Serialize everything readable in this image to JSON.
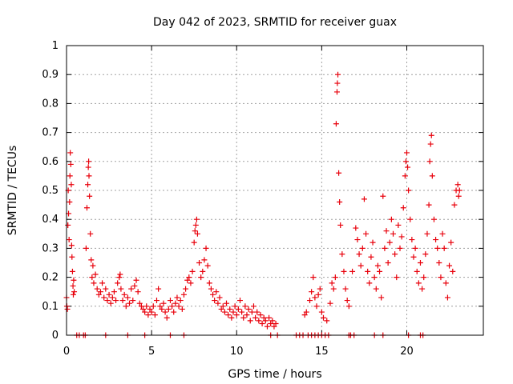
{
  "chart_data": {
    "type": "scatter",
    "title": "Day 042 of 2023, SRMTID for receiver guax",
    "xlabel": "GPS time / hours",
    "ylabel": "SRMTID / TECUs",
    "xlim": [
      0,
      24.5
    ],
    "ylim": [
      0,
      1
    ],
    "grid": true,
    "marker": "+",
    "marker_color": "#e8000b",
    "x_ticks": [
      {
        "value": 0,
        "label": "0"
      },
      {
        "value": 5,
        "label": "5"
      },
      {
        "value": 10,
        "label": "10"
      },
      {
        "value": 15,
        "label": "15"
      },
      {
        "value": 20,
        "label": "20"
      }
    ],
    "y_ticks": [
      {
        "value": 0,
        "label": "0"
      },
      {
        "value": 0.1,
        "label": "0.1"
      },
      {
        "value": 0.2,
        "label": "0.2"
      },
      {
        "value": 0.3,
        "label": "0.3"
      },
      {
        "value": 0.4,
        "label": "0.4"
      },
      {
        "value": 0.5,
        "label": "0.5"
      },
      {
        "value": 0.6,
        "label": "0.6"
      },
      {
        "value": 0.7,
        "label": "0.7"
      },
      {
        "value": 0.8,
        "label": "0.8"
      },
      {
        "value": 0.9,
        "label": "0.9"
      },
      {
        "value": 1,
        "label": "1"
      }
    ],
    "series": [
      {
        "name": "SRMTID",
        "points": [
          [
            0.0,
            0.13
          ],
          [
            0.02,
            0.1
          ],
          [
            0.05,
            0.09
          ],
          [
            0.08,
            0.38
          ],
          [
            0.1,
            0.5
          ],
          [
            0.12,
            0.42
          ],
          [
            0.15,
            0.33
          ],
          [
            0.18,
            0.46
          ],
          [
            0.2,
            0.55
          ],
          [
            0.22,
            0.63
          ],
          [
            0.25,
            0.59
          ],
          [
            0.28,
            0.52
          ],
          [
            0.3,
            0.31
          ],
          [
            0.32,
            0.27
          ],
          [
            0.35,
            0.22
          ],
          [
            0.38,
            0.17
          ],
          [
            0.4,
            0.14
          ],
          [
            0.42,
            0.19
          ],
          [
            0.45,
            0.15
          ],
          [
            1.15,
            0.3
          ],
          [
            1.2,
            0.44
          ],
          [
            1.25,
            0.52
          ],
          [
            1.28,
            0.58
          ],
          [
            1.3,
            0.6
          ],
          [
            1.32,
            0.55
          ],
          [
            1.35,
            0.48
          ],
          [
            1.4,
            0.35
          ],
          [
            1.45,
            0.26
          ],
          [
            1.5,
            0.2
          ],
          [
            1.55,
            0.24
          ],
          [
            1.6,
            0.18
          ],
          [
            1.7,
            0.21
          ],
          [
            1.8,
            0.16
          ],
          [
            1.9,
            0.14
          ],
          [
            2.0,
            0.15
          ],
          [
            2.1,
            0.18
          ],
          [
            2.2,
            0.13
          ],
          [
            2.3,
            0.16
          ],
          [
            2.4,
            0.12
          ],
          [
            2.5,
            0.14
          ],
          [
            2.6,
            0.11
          ],
          [
            2.7,
            0.13
          ],
          [
            2.8,
            0.15
          ],
          [
            2.9,
            0.12
          ],
          [
            3.0,
            0.18
          ],
          [
            3.1,
            0.2
          ],
          [
            3.15,
            0.21
          ],
          [
            3.2,
            0.16
          ],
          [
            3.3,
            0.12
          ],
          [
            3.4,
            0.14
          ],
          [
            3.5,
            0.1
          ],
          [
            3.6,
            0.13
          ],
          [
            3.7,
            0.11
          ],
          [
            3.8,
            0.16
          ],
          [
            3.9,
            0.12
          ],
          [
            4.0,
            0.17
          ],
          [
            4.1,
            0.19
          ],
          [
            4.2,
            0.15
          ],
          [
            4.3,
            0.11
          ],
          [
            4.4,
            0.1
          ],
          [
            4.5,
            0.09
          ],
          [
            4.6,
            0.08
          ],
          [
            4.7,
            0.1
          ],
          [
            4.8,
            0.07
          ],
          [
            4.9,
            0.09
          ],
          [
            5.0,
            0.08
          ],
          [
            5.1,
            0.1
          ],
          [
            5.2,
            0.07
          ],
          [
            5.3,
            0.12
          ],
          [
            5.4,
            0.16
          ],
          [
            5.5,
            0.1
          ],
          [
            5.6,
            0.09
          ],
          [
            5.7,
            0.11
          ],
          [
            5.8,
            0.08
          ],
          [
            5.9,
            0.06
          ],
          [
            6.0,
            0.09
          ],
          [
            6.1,
            0.12
          ],
          [
            6.2,
            0.1
          ],
          [
            6.3,
            0.08
          ],
          [
            6.4,
            0.11
          ],
          [
            6.5,
            0.13
          ],
          [
            6.6,
            0.1
          ],
          [
            6.7,
            0.12
          ],
          [
            6.8,
            0.09
          ],
          [
            6.9,
            0.14
          ],
          [
            7.0,
            0.16
          ],
          [
            7.1,
            0.19
          ],
          [
            7.2,
            0.2
          ],
          [
            7.3,
            0.18
          ],
          [
            7.4,
            0.22
          ],
          [
            7.5,
            0.32
          ],
          [
            7.55,
            0.36
          ],
          [
            7.6,
            0.38
          ],
          [
            7.65,
            0.4
          ],
          [
            7.7,
            0.35
          ],
          [
            7.8,
            0.25
          ],
          [
            7.9,
            0.2
          ],
          [
            8.0,
            0.22
          ],
          [
            8.1,
            0.26
          ],
          [
            8.2,
            0.3
          ],
          [
            8.3,
            0.24
          ],
          [
            8.4,
            0.18
          ],
          [
            8.5,
            0.16
          ],
          [
            8.6,
            0.14
          ],
          [
            8.7,
            0.12
          ],
          [
            8.8,
            0.15
          ],
          [
            8.9,
            0.11
          ],
          [
            9.0,
            0.13
          ],
          [
            9.1,
            0.09
          ],
          [
            9.2,
            0.1
          ],
          [
            9.3,
            0.08
          ],
          [
            9.4,
            0.11
          ],
          [
            9.5,
            0.07
          ],
          [
            9.6,
            0.09
          ],
          [
            9.7,
            0.06
          ],
          [
            9.8,
            0.08
          ],
          [
            9.9,
            0.1
          ],
          [
            10.0,
            0.07
          ],
          [
            10.1,
            0.09
          ],
          [
            10.2,
            0.12
          ],
          [
            10.3,
            0.08
          ],
          [
            10.4,
            0.06
          ],
          [
            10.5,
            0.1
          ],
          [
            10.6,
            0.07
          ],
          [
            10.7,
            0.09
          ],
          [
            10.8,
            0.05
          ],
          [
            10.9,
            0.08
          ],
          [
            11.0,
            0.1
          ],
          [
            11.1,
            0.06
          ],
          [
            11.2,
            0.08
          ],
          [
            11.3,
            0.05
          ],
          [
            11.4,
            0.07
          ],
          [
            11.5,
            0.04
          ],
          [
            11.6,
            0.06
          ],
          [
            11.7,
            0.05
          ],
          [
            11.8,
            0.03
          ],
          [
            11.9,
            0.06
          ],
          [
            12.0,
            0.04
          ],
          [
            12.1,
            0.05
          ],
          [
            12.2,
            0.03
          ],
          [
            12.3,
            0.04
          ],
          [
            14.0,
            0.07
          ],
          [
            14.1,
            0.08
          ],
          [
            14.3,
            0.12
          ],
          [
            14.4,
            0.15
          ],
          [
            14.5,
            0.2
          ],
          [
            14.6,
            0.13
          ],
          [
            14.7,
            0.1
          ],
          [
            14.8,
            0.14
          ],
          [
            14.9,
            0.16
          ],
          [
            15.0,
            0.08
          ],
          [
            15.1,
            0.06
          ],
          [
            15.3,
            0.05
          ],
          [
            15.5,
            0.11
          ],
          [
            15.6,
            0.18
          ],
          [
            15.7,
            0.16
          ],
          [
            15.8,
            0.2
          ],
          [
            15.85,
            0.73
          ],
          [
            15.9,
            0.84
          ],
          [
            15.92,
            0.87
          ],
          [
            15.95,
            0.9
          ],
          [
            16.0,
            0.56
          ],
          [
            16.05,
            0.46
          ],
          [
            16.1,
            0.38
          ],
          [
            16.2,
            0.28
          ],
          [
            16.3,
            0.22
          ],
          [
            16.4,
            0.16
          ],
          [
            16.5,
            0.12
          ],
          [
            16.6,
            0.1
          ],
          [
            16.8,
            0.22
          ],
          [
            17.0,
            0.37
          ],
          [
            17.1,
            0.33
          ],
          [
            17.2,
            0.28
          ],
          [
            17.3,
            0.24
          ],
          [
            17.4,
            0.3
          ],
          [
            17.5,
            0.47
          ],
          [
            17.6,
            0.35
          ],
          [
            17.7,
            0.22
          ],
          [
            17.8,
            0.18
          ],
          [
            17.9,
            0.27
          ],
          [
            18.0,
            0.32
          ],
          [
            18.1,
            0.2
          ],
          [
            18.2,
            0.16
          ],
          [
            18.3,
            0.24
          ],
          [
            18.4,
            0.22
          ],
          [
            18.5,
            0.13
          ],
          [
            18.6,
            0.48
          ],
          [
            18.7,
            0.3
          ],
          [
            18.8,
            0.36
          ],
          [
            18.9,
            0.25
          ],
          [
            19.0,
            0.32
          ],
          [
            19.1,
            0.4
          ],
          [
            19.2,
            0.35
          ],
          [
            19.3,
            0.28
          ],
          [
            19.4,
            0.2
          ],
          [
            19.5,
            0.38
          ],
          [
            19.6,
            0.3
          ],
          [
            19.7,
            0.34
          ],
          [
            19.8,
            0.44
          ],
          [
            19.9,
            0.55
          ],
          [
            19.95,
            0.6
          ],
          [
            20.0,
            0.63
          ],
          [
            20.05,
            0.58
          ],
          [
            20.1,
            0.5
          ],
          [
            20.2,
            0.4
          ],
          [
            20.3,
            0.33
          ],
          [
            20.4,
            0.27
          ],
          [
            20.5,
            0.3
          ],
          [
            20.6,
            0.22
          ],
          [
            20.7,
            0.18
          ],
          [
            20.8,
            0.25
          ],
          [
            20.9,
            0.16
          ],
          [
            21.0,
            0.2
          ],
          [
            21.1,
            0.28
          ],
          [
            21.2,
            0.35
          ],
          [
            21.3,
            0.45
          ],
          [
            21.35,
            0.6
          ],
          [
            21.4,
            0.66
          ],
          [
            21.45,
            0.69
          ],
          [
            21.5,
            0.55
          ],
          [
            21.6,
            0.4
          ],
          [
            21.7,
            0.33
          ],
          [
            21.8,
            0.3
          ],
          [
            21.9,
            0.25
          ],
          [
            22.0,
            0.2
          ],
          [
            22.1,
            0.35
          ],
          [
            22.2,
            0.3
          ],
          [
            22.3,
            0.18
          ],
          [
            22.4,
            0.13
          ],
          [
            22.5,
            0.24
          ],
          [
            22.6,
            0.32
          ],
          [
            22.7,
            0.22
          ],
          [
            22.8,
            0.45
          ],
          [
            22.9,
            0.5
          ],
          [
            23.0,
            0.52
          ],
          [
            23.05,
            0.48
          ],
          [
            23.1,
            0.5
          ],
          [
            0.6,
            0.0
          ],
          [
            0.75,
            0.0
          ],
          [
            1.0,
            0.0
          ],
          [
            1.1,
            0.0
          ],
          [
            2.3,
            0.0
          ],
          [
            3.6,
            0.0
          ],
          [
            4.6,
            0.0
          ],
          [
            6.1,
            0.0
          ],
          [
            6.9,
            0.0
          ],
          [
            12.0,
            0.0
          ],
          [
            12.4,
            0.0
          ],
          [
            13.5,
            0.0
          ],
          [
            13.7,
            0.0
          ],
          [
            13.9,
            0.0
          ],
          [
            14.2,
            0.0
          ],
          [
            14.4,
            0.0
          ],
          [
            14.6,
            0.0
          ],
          [
            14.8,
            0.0
          ],
          [
            15.0,
            0.0
          ],
          [
            15.2,
            0.0
          ],
          [
            15.4,
            0.0
          ],
          [
            16.6,
            0.0
          ],
          [
            16.7,
            0.0
          ],
          [
            16.9,
            0.0
          ],
          [
            18.1,
            0.0
          ],
          [
            18.6,
            0.0
          ],
          [
            20.1,
            0.0
          ],
          [
            20.8,
            0.0
          ],
          [
            20.95,
            0.0
          ]
        ]
      }
    ]
  }
}
